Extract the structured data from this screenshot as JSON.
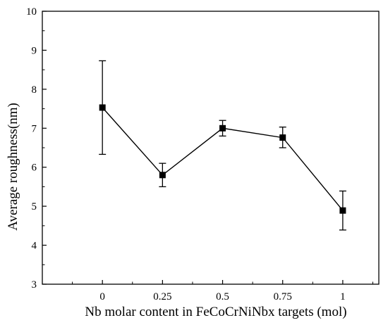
{
  "chart_data": {
    "type": "line",
    "title": "",
    "xlabel": "Nb molar content in FeCoCrNiNbx targets (mol)",
    "ylabel": "Average roughness(nm)",
    "x_ticks": [
      "0",
      "0.25",
      "0.5",
      "0.75",
      "1"
    ],
    "y_ticks": [
      "3",
      "4",
      "5",
      "6",
      "7",
      "8",
      "9",
      "10"
    ],
    "xlim": [
      -0.25,
      1.15
    ],
    "ylim": [
      3,
      10
    ],
    "grid": false,
    "legend": "none",
    "series": [
      {
        "x": [
          0,
          0.25,
          0.5,
          0.75,
          1
        ],
        "y": [
          7.53,
          5.8,
          7.0,
          6.76,
          4.89
        ],
        "error_low": [
          6.33,
          5.5,
          6.8,
          6.5,
          4.39
        ],
        "error_high": [
          8.73,
          6.1,
          7.2,
          7.03,
          5.39
        ],
        "color": "#000000",
        "marker": "square"
      }
    ]
  }
}
